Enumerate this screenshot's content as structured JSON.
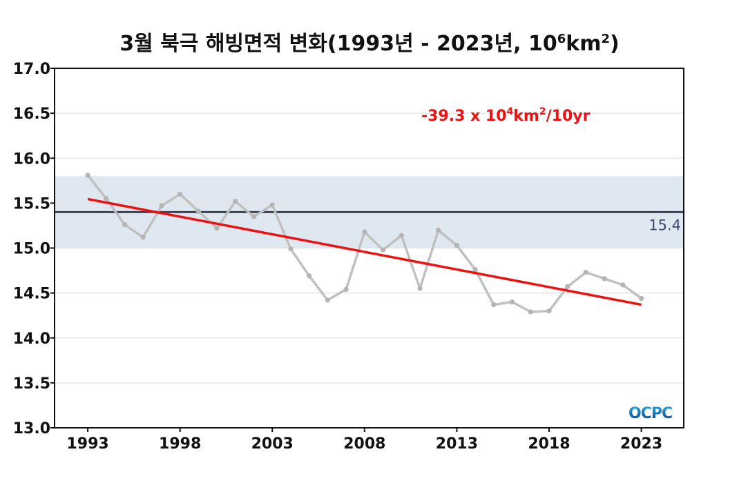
{
  "chart_data": {
    "type": "line",
    "title_parts": {
      "pre": "3월 북극 해빙면적 변화(1993년 - 2023년, 10",
      "sup1": "6",
      "mid": "km",
      "sup2": "2",
      "post": ")"
    },
    "x": [
      1993,
      1994,
      1995,
      1996,
      1997,
      1998,
      1999,
      2000,
      2001,
      2002,
      2003,
      2004,
      2005,
      2006,
      2007,
      2008,
      2009,
      2010,
      2011,
      2012,
      2013,
      2014,
      2015,
      2016,
      2017,
      2018,
      2019,
      2020,
      2021,
      2022,
      2023
    ],
    "series": [
      {
        "values": [
          15.81,
          15.55,
          15.26,
          15.12,
          15.47,
          15.6,
          15.41,
          15.22,
          15.52,
          15.35,
          15.48,
          14.99,
          14.69,
          14.42,
          14.54,
          15.18,
          14.98,
          15.14,
          14.55,
          15.2,
          15.03,
          14.76,
          14.37,
          14.4,
          14.29,
          14.3,
          14.57,
          14.73,
          14.66,
          14.59,
          14.44
        ],
        "color": "#c0c0c0"
      }
    ],
    "trend": {
      "start": [
        1993,
        15.545
      ],
      "end": [
        2023,
        14.37
      ],
      "color": "#ee1111",
      "label_pre": "-39.3 x 10",
      "label_sup1": "4",
      "label_mid": "km",
      "label_sup2": "2",
      "label_post": "/10yr"
    },
    "mean": {
      "value": 15.4,
      "label": "15.4",
      "color": "#3d4450"
    },
    "band": {
      "ylim": [
        15.0,
        15.8
      ],
      "color": "#dfe8f1"
    },
    "xlim": [
      1991.2,
      2025.3
    ],
    "ylim": [
      13.0,
      17.0
    ],
    "xticks": [
      1993,
      1998,
      2003,
      2008,
      2013,
      2018,
      2023
    ],
    "yticks": [
      "13.0",
      "13.5",
      "14.0",
      "14.5",
      "15.0",
      "15.5",
      "16.0",
      "16.5",
      "17.0"
    ],
    "grid": true,
    "logo": "OCPC"
  }
}
